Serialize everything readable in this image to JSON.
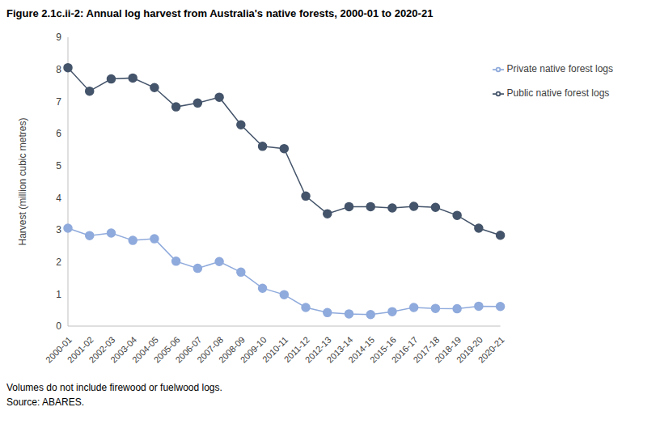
{
  "chart_data": {
    "type": "line",
    "title": "Figure 2.1c.ii-2: Annual log harvest from Australia's native forests, 2000-01 to 2020-21",
    "y_label": "Harvest (million cubic metres)",
    "notes": [
      "Volumes do not include firewood or fuelwood logs.",
      "Source: ABARES."
    ],
    "categories": [
      "2000-01",
      "2001-02",
      "2002-03",
      "2003-04",
      "2004-05",
      "2005-06",
      "2006-07",
      "2007-08",
      "2008-09",
      "2009-10",
      "2010-11",
      "2011-12",
      "2012-13",
      "2013-14",
      "2014-15",
      "2015-16",
      "2016-17",
      "2017-18",
      "2018-19",
      "2019-20",
      "2020-21"
    ],
    "series": [
      {
        "name": "Public native forest logs",
        "color": "#44546A",
        "marker": "circle",
        "values": [
          8.05,
          7.32,
          7.7,
          7.73,
          7.43,
          6.83,
          6.95,
          7.13,
          6.27,
          5.6,
          5.53,
          4.05,
          3.5,
          3.72,
          3.72,
          3.68,
          3.73,
          3.7,
          3.45,
          3.05,
          2.83
        ]
      },
      {
        "name": "Private native forest logs",
        "color": "#8FAADC",
        "marker": "circle",
        "values": [
          3.05,
          2.82,
          2.9,
          2.67,
          2.72,
          2.02,
          1.8,
          2.01,
          1.68,
          1.18,
          0.98,
          0.58,
          0.42,
          0.38,
          0.36,
          0.45,
          0.58,
          0.55,
          0.54,
          0.62,
          0.61
        ]
      }
    ],
    "ylim": [
      0,
      9
    ],
    "yticks": [
      0,
      1,
      2,
      3,
      4,
      5,
      6,
      7,
      8,
      9
    ],
    "grid": false,
    "legend": "upper right"
  }
}
